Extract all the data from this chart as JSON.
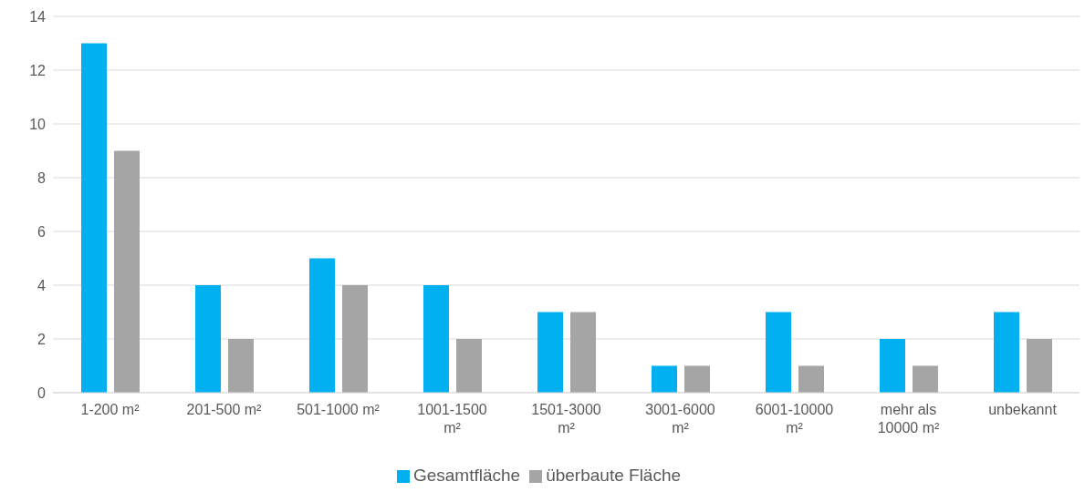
{
  "chart_data": {
    "type": "bar",
    "categories": [
      "1-200 m²",
      "201-500 m²",
      "501-1000 m²",
      "1001-1500 m²",
      "1501-3000 m²",
      "3001-6000 m²",
      "6001-10000 m²",
      "mehr als 10000 m²",
      "unbekannt"
    ],
    "series": [
      {
        "name": "Gesamtfläche",
        "color": "#00b0f0",
        "values": [
          13,
          4,
          5,
          4,
          3,
          1,
          3,
          2,
          3
        ]
      },
      {
        "name": "überbaute Fläche",
        "color": "#a5a5a5",
        "values": [
          9,
          2,
          4,
          2,
          3,
          1,
          1,
          1,
          2
        ]
      }
    ],
    "ylim": [
      0,
      14
    ],
    "yticks": [
      0,
      2,
      4,
      6,
      8,
      10,
      12,
      14
    ],
    "grid": "y",
    "legend": "bottom"
  }
}
